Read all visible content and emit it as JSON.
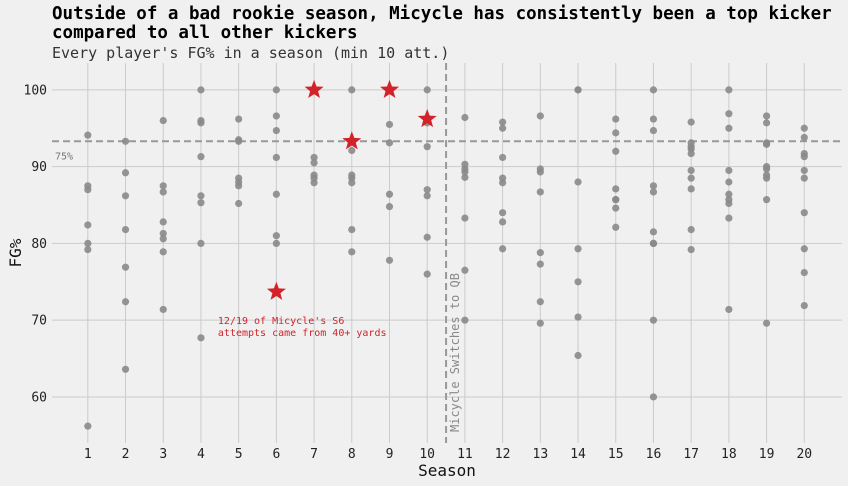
{
  "chart_data": {
    "type": "scatter",
    "title": "Outside of a bad rookie season, Micycle has consistently been a top kicker compared to all other kickers",
    "subtitle": "Every player's FG% in a season (min 10 att.)",
    "xlabel": "Season",
    "ylabel": "FG%",
    "x_ticks": [
      1,
      2,
      3,
      4,
      5,
      6,
      7,
      8,
      9,
      10,
      11,
      12,
      13,
      14,
      15,
      16,
      17,
      18,
      19,
      20
    ],
    "y_ticks": [
      60,
      70,
      80,
      90,
      100
    ],
    "xlim": [
      0.05,
      21.0
    ],
    "ylim": [
      54,
      103.5
    ],
    "grid": true,
    "colors": {
      "others": "#8a8a8a",
      "micycle": "#d3232a",
      "reference": "#999999"
    },
    "series": [
      {
        "marker": "circle",
        "points": [
          [
            1,
            94.1
          ],
          [
            1,
            87.5
          ],
          [
            1,
            87.0
          ],
          [
            1,
            82.4
          ],
          [
            1,
            80.0
          ],
          [
            1,
            79.2
          ],
          [
            1,
            56.2
          ],
          [
            2,
            93.3
          ],
          [
            2,
            89.2
          ],
          [
            2,
            86.2
          ],
          [
            2,
            81.8
          ],
          [
            2,
            76.9
          ],
          [
            2,
            72.4
          ],
          [
            2,
            63.6
          ],
          [
            3,
            96.0
          ],
          [
            3,
            87.5
          ],
          [
            3,
            86.7
          ],
          [
            3,
            82.8
          ],
          [
            3,
            81.3
          ],
          [
            3,
            80.6
          ],
          [
            3,
            78.9
          ],
          [
            3,
            71.4
          ],
          [
            4,
            100
          ],
          [
            4,
            96.0
          ],
          [
            4,
            95.7
          ],
          [
            4,
            91.3
          ],
          [
            4,
            86.2
          ],
          [
            4,
            85.3
          ],
          [
            4,
            80.0
          ],
          [
            4,
            67.7
          ],
          [
            5,
            96.2
          ],
          [
            5,
            93.5
          ],
          [
            5,
            93.3
          ],
          [
            5,
            88.5
          ],
          [
            5,
            88.0
          ],
          [
            5,
            87.5
          ],
          [
            5,
            85.2
          ],
          [
            6,
            100
          ],
          [
            6,
            96.6
          ],
          [
            6,
            94.7
          ],
          [
            6,
            91.2
          ],
          [
            6,
            86.4
          ],
          [
            6,
            81.0
          ],
          [
            6,
            80.0
          ],
          [
            7,
            91.2
          ],
          [
            7,
            90.5
          ],
          [
            7,
            88.9
          ],
          [
            7,
            88.5
          ],
          [
            7,
            87.9
          ],
          [
            8,
            100
          ],
          [
            8,
            92.1
          ],
          [
            8,
            88.9
          ],
          [
            8,
            88.5
          ],
          [
            8,
            87.9
          ],
          [
            8,
            81.8
          ],
          [
            8,
            78.9
          ],
          [
            9,
            95.5
          ],
          [
            9,
            93.1
          ],
          [
            9,
            86.4
          ],
          [
            9,
            84.8
          ],
          [
            9,
            77.8
          ],
          [
            10,
            100
          ],
          [
            10,
            95.7
          ],
          [
            10,
            92.6
          ],
          [
            10,
            87.0
          ],
          [
            10,
            86.2
          ],
          [
            10,
            80.8
          ],
          [
            10,
            76.0
          ],
          [
            11,
            96.4
          ],
          [
            11,
            90.3
          ],
          [
            11,
            89.7
          ],
          [
            11,
            89.3
          ],
          [
            11,
            88.6
          ],
          [
            11,
            83.3
          ],
          [
            11,
            76.5
          ],
          [
            11,
            70.0
          ],
          [
            12,
            95.8
          ],
          [
            12,
            95.0
          ],
          [
            12,
            91.2
          ],
          [
            12,
            88.5
          ],
          [
            12,
            87.9
          ],
          [
            12,
            84.0
          ],
          [
            12,
            82.8
          ],
          [
            12,
            79.3
          ],
          [
            13,
            96.6
          ],
          [
            13,
            89.7
          ],
          [
            13,
            89.3
          ],
          [
            13,
            86.7
          ],
          [
            13,
            78.8
          ],
          [
            13,
            77.3
          ],
          [
            13,
            72.4
          ],
          [
            13,
            69.6
          ],
          [
            14,
            100
          ],
          [
            14,
            100
          ],
          [
            14,
            88.0
          ],
          [
            14,
            79.3
          ],
          [
            14,
            75.0
          ],
          [
            14,
            70.4
          ],
          [
            14,
            65.4
          ],
          [
            15,
            96.2
          ],
          [
            15,
            94.4
          ],
          [
            15,
            92.0
          ],
          [
            15,
            87.1
          ],
          [
            15,
            85.7
          ],
          [
            15,
            85.7
          ],
          [
            15,
            84.6
          ],
          [
            15,
            82.1
          ],
          [
            16,
            100
          ],
          [
            16,
            96.2
          ],
          [
            16,
            94.7
          ],
          [
            16,
            87.5
          ],
          [
            16,
            86.7
          ],
          [
            16,
            81.5
          ],
          [
            16,
            80.0
          ],
          [
            16,
            80.0
          ],
          [
            16,
            70.0
          ],
          [
            16,
            60.0
          ],
          [
            17,
            95.8
          ],
          [
            17,
            93.1
          ],
          [
            17,
            92.6
          ],
          [
            17,
            92.3
          ],
          [
            17,
            91.7
          ],
          [
            17,
            89.5
          ],
          [
            17,
            88.5
          ],
          [
            17,
            87.1
          ],
          [
            17,
            81.8
          ],
          [
            17,
            79.2
          ],
          [
            18,
            100
          ],
          [
            18,
            96.9
          ],
          [
            18,
            95.0
          ],
          [
            18,
            89.5
          ],
          [
            18,
            88.0
          ],
          [
            18,
            86.4
          ],
          [
            18,
            85.7
          ],
          [
            18,
            85.2
          ],
          [
            18,
            83.3
          ],
          [
            18,
            71.4
          ],
          [
            19,
            96.6
          ],
          [
            19,
            95.7
          ],
          [
            19,
            93.1
          ],
          [
            19,
            92.9
          ],
          [
            19,
            90.0
          ],
          [
            19,
            89.7
          ],
          [
            19,
            88.9
          ],
          [
            19,
            88.5
          ],
          [
            19,
            85.7
          ],
          [
            19,
            69.6
          ],
          [
            20,
            95.0
          ],
          [
            20,
            93.8
          ],
          [
            20,
            91.7
          ],
          [
            20,
            91.3
          ],
          [
            20,
            89.5
          ],
          [
            20,
            88.5
          ],
          [
            20,
            84.0
          ],
          [
            20,
            79.3
          ],
          [
            20,
            76.2
          ],
          [
            20,
            71.9
          ]
        ]
      },
      {
        "marker": "star",
        "points": [
          [
            6,
            73.7
          ],
          [
            7,
            100
          ],
          [
            8,
            93.3
          ],
          [
            9,
            100
          ],
          [
            10,
            96.2
          ]
        ]
      }
    ],
    "reference_lines": [
      {
        "orientation": "horizontal",
        "value": 93.3,
        "label": "75%"
      },
      {
        "orientation": "vertical",
        "value": 10.5,
        "label": "Micycle Switches to QB"
      }
    ],
    "annotations": [
      {
        "lines": [
          "12/19 of Micycle's S6",
          "attempts came from 40+ yards"
        ],
        "x": 4.45,
        "y": 69.5
      }
    ]
  }
}
